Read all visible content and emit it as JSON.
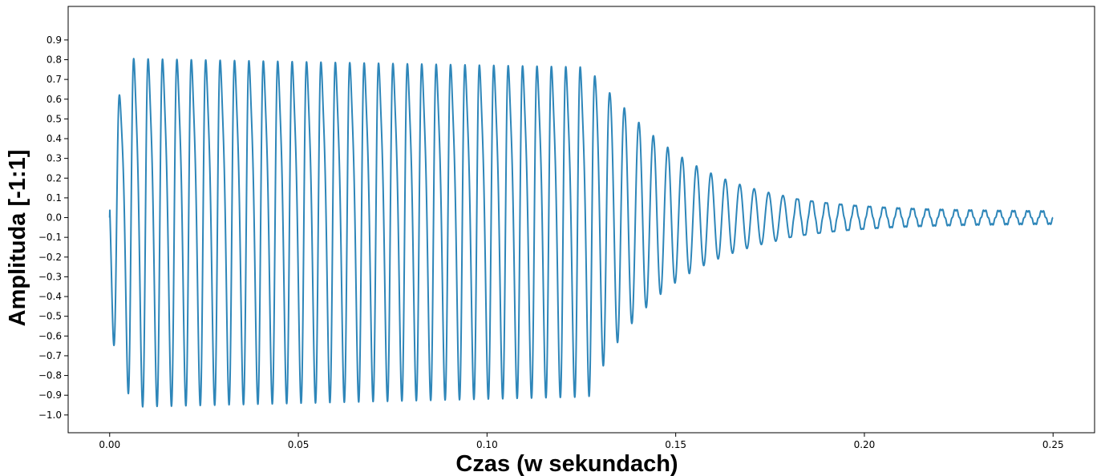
{
  "chart_data": {
    "type": "line",
    "title": "",
    "xlabel": "Czas (w sekundach)",
    "ylabel": "Amplituda [-1:1]",
    "xlim": [
      -0.011,
      0.261
    ],
    "ylim": [
      -1.09,
      1.07
    ],
    "grid": false,
    "legend": "none",
    "x_ticks": [
      0.0,
      0.05,
      0.1,
      0.15,
      0.2,
      0.25
    ],
    "x_tick_labels": [
      "0.00",
      "0.05",
      "0.10",
      "0.15",
      "0.20",
      "0.25"
    ],
    "y_ticks": [
      -1.0,
      -0.9,
      -0.8,
      -0.7,
      -0.6,
      -0.5,
      -0.4,
      -0.3,
      -0.2,
      -0.1,
      0.0,
      0.1,
      0.2,
      0.3,
      0.4,
      0.5,
      0.6,
      0.7,
      0.8,
      0.9
    ],
    "y_tick_labels": [
      "−1.0",
      "−0.9",
      "−0.8",
      "−0.7",
      "−0.6",
      "−0.5",
      "−0.4",
      "−0.3",
      "−0.2",
      "−0.1",
      "0.0",
      "0.1",
      "0.2",
      "0.3",
      "0.4",
      "0.5",
      "0.6",
      "0.7",
      "0.8",
      "0.9"
    ],
    "series": [
      {
        "color": "#2e86b9",
        "duration": 0.25,
        "frequency_hz": 262,
        "attack_end": 0.006,
        "sustain_end": 0.127,
        "peak_amplitude": 0.93,
        "sustain_amplitude": 0.88,
        "final_amplitude": 0.03,
        "peaks_sampled": [
          {
            "x": 0.0025,
            "y": 0.93
          },
          {
            "x": 0.0063,
            "y": 0.97
          },
          {
            "x": 0.05,
            "y": 0.92
          },
          {
            "x": 0.1,
            "y": 0.88
          },
          {
            "x": 0.125,
            "y": 0.87
          },
          {
            "x": 0.129,
            "y": 0.77
          },
          {
            "x": 0.133,
            "y": 0.65
          },
          {
            "x": 0.137,
            "y": 0.53
          },
          {
            "x": 0.141,
            "y": 0.46
          },
          {
            "x": 0.145,
            "y": 0.38
          },
          {
            "x": 0.15,
            "y": 0.27
          },
          {
            "x": 0.16,
            "y": 0.17
          },
          {
            "x": 0.17,
            "y": 0.12
          },
          {
            "x": 0.18,
            "y": 0.09
          },
          {
            "x": 0.19,
            "y": 0.07
          },
          {
            "x": 0.2,
            "y": 0.05
          },
          {
            "x": 0.22,
            "y": 0.04
          },
          {
            "x": 0.25,
            "y": 0.03
          }
        ],
        "troughs_sampled": [
          {
            "x": 0.001,
            "y": -0.74
          },
          {
            "x": 0.0045,
            "y": -0.96
          },
          {
            "x": 0.0083,
            "y": -0.98
          },
          {
            "x": 0.05,
            "y": -0.93
          },
          {
            "x": 0.1,
            "y": -0.9
          },
          {
            "x": 0.124,
            "y": -0.89
          },
          {
            "x": 0.127,
            "y": -0.83
          },
          {
            "x": 0.131,
            "y": -0.7
          },
          {
            "x": 0.135,
            "y": -0.58
          },
          {
            "x": 0.14,
            "y": -0.42
          },
          {
            "x": 0.15,
            "y": -0.25
          },
          {
            "x": 0.16,
            "y": -0.17
          },
          {
            "x": 0.18,
            "y": -0.08
          },
          {
            "x": 0.2,
            "y": -0.04
          },
          {
            "x": 0.25,
            "y": -0.02
          }
        ]
      }
    ]
  }
}
